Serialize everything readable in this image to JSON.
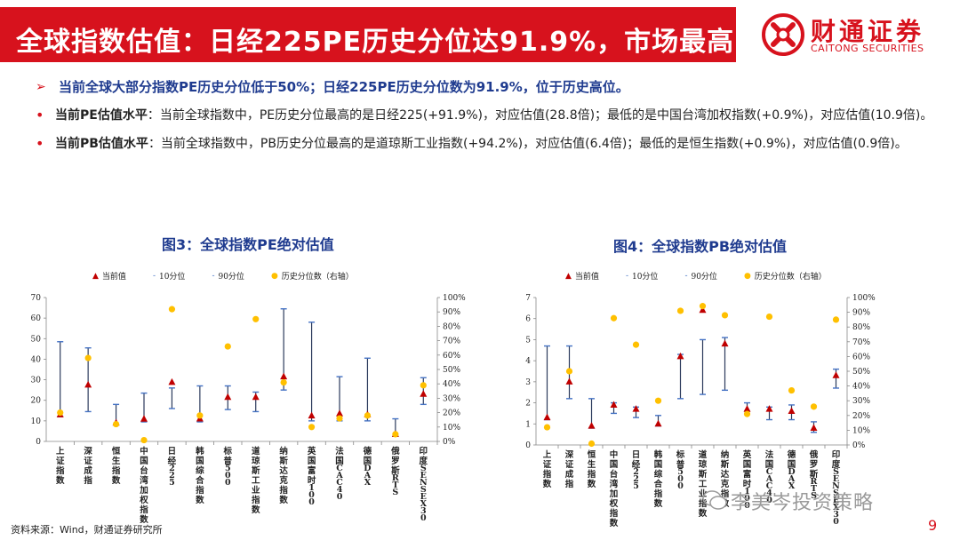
{
  "header": {
    "title": "全球指数估值：日经225PE历史分位达91.9%，市场最高",
    "logo_cn": "财通证券",
    "logo_en": "CAITONG SECURITIES"
  },
  "summary": {
    "marker": "➢",
    "text": "当前全球大部分指数PE历史分位低于50%；日经225PE历史分位数为91.9%，位于历史高位。"
  },
  "bullets": [
    {
      "marker": "•",
      "label": "当前PE估值水平",
      "text": "：当前全球指数中，PE历史分位最高的是日经225(+91.9%)，对应估值(28.8倍)；最低的是中国台湾加权指数(+0.9%)，对应估值(10.9倍)。"
    },
    {
      "marker": "•",
      "label": "当前PB估值水平",
      "text": "：当前全球指数中，PB历史分位最高的是道琼斯工业指数(+94.2%)，对应估值(6.4倍)；最低的是恒生指数(+0.9%)，对应估值(0.9倍)。"
    }
  ],
  "legend": {
    "current": "当前值",
    "p10": "10分位",
    "p90": "90分位",
    "pct": "历史分位数（右轴）"
  },
  "colors": {
    "brand_red": "#d7121d",
    "title_blue": "#1f3b8f",
    "range_line": "#2b3a5c",
    "tick_blue": "#4472c4",
    "pct_yellow": "#ffc000"
  },
  "chart_data": [
    {
      "type": "range-scatter",
      "title": "图3：全球指数PE绝对估值",
      "categories": [
        "上证指数",
        "深证成指",
        "恒生指数",
        "中国台湾加权指数",
        "日经225",
        "韩国综合指数",
        "标普500",
        "道琼斯工业指数",
        "纳斯达克指数",
        "英国富时100",
        "法国CAC40",
        "德国DAX",
        "俄罗斯RTS",
        "印度SENSEX30"
      ],
      "current": [
        13,
        27.5,
        9,
        10.9,
        28.8,
        11,
        21.5,
        21.5,
        31.5,
        12.5,
        13.5,
        13,
        3.5,
        23
      ],
      "p10": [
        12,
        14.5,
        8,
        9.5,
        16,
        9.5,
        15.5,
        14.5,
        25,
        10,
        10,
        10,
        2.5,
        18
      ],
      "p90": [
        48.5,
        45.5,
        18,
        23.5,
        26,
        27,
        27,
        24,
        64.5,
        58,
        31.5,
        40.5,
        11,
        31
      ],
      "percentile": [
        20,
        58,
        12,
        0.9,
        91.9,
        18,
        66,
        85,
        41,
        10,
        16,
        18,
        5,
        39
      ],
      "ylim_left": [
        0,
        70
      ],
      "yticks_left": [
        0,
        10,
        20,
        30,
        40,
        50,
        60,
        70
      ],
      "ylim_right": [
        0,
        100
      ],
      "yticks_right": [
        "0%",
        "10%",
        "20%",
        "30%",
        "40%",
        "50%",
        "60%",
        "70%",
        "80%",
        "90%",
        "100%"
      ]
    },
    {
      "type": "range-scatter",
      "title": "图4：全球指数PB绝对估值",
      "categories": [
        "上证指数",
        "深证成指",
        "恒生指数",
        "中国台湾加权指数",
        "日经225",
        "韩国综合指数",
        "标普500",
        "道琼斯工业指数",
        "纳斯达克指数",
        "英国富时100",
        "法国CAC40",
        "德国DAX",
        "俄罗斯RTS",
        "印度SENSEX30"
      ],
      "current": [
        1.3,
        3.0,
        0.9,
        1.9,
        1.7,
        1.0,
        4.2,
        6.4,
        4.8,
        1.7,
        1.7,
        1.6,
        0.8,
        3.3
      ],
      "p10": [
        1.2,
        2.2,
        0.8,
        1.5,
        1.3,
        0.9,
        2.2,
        2.4,
        2.6,
        1.6,
        1.2,
        1.2,
        0.6,
        2.7
      ],
      "p90": [
        4.7,
        4.7,
        2.2,
        2.0,
        1.8,
        1.4,
        4.3,
        5.0,
        5.1,
        2.0,
        1.8,
        1.9,
        1.1,
        3.6
      ],
      "percentile": [
        12,
        50,
        0.9,
        86,
        68,
        30,
        91,
        94.2,
        88,
        21,
        87,
        37,
        26,
        85
      ],
      "ylim_left": [
        0,
        7
      ],
      "yticks_left": [
        0,
        1,
        2,
        3,
        4,
        5,
        6,
        7
      ],
      "ylim_right": [
        0,
        100
      ],
      "yticks_right": [
        "0%",
        "10%",
        "20%",
        "30%",
        "40%",
        "50%",
        "60%",
        "70%",
        "80%",
        "90%",
        "100%"
      ]
    }
  ],
  "footer": {
    "source": "资料来源：Wind，财通证券研究所",
    "watermark": "李美岑投资策略",
    "page": "9"
  }
}
